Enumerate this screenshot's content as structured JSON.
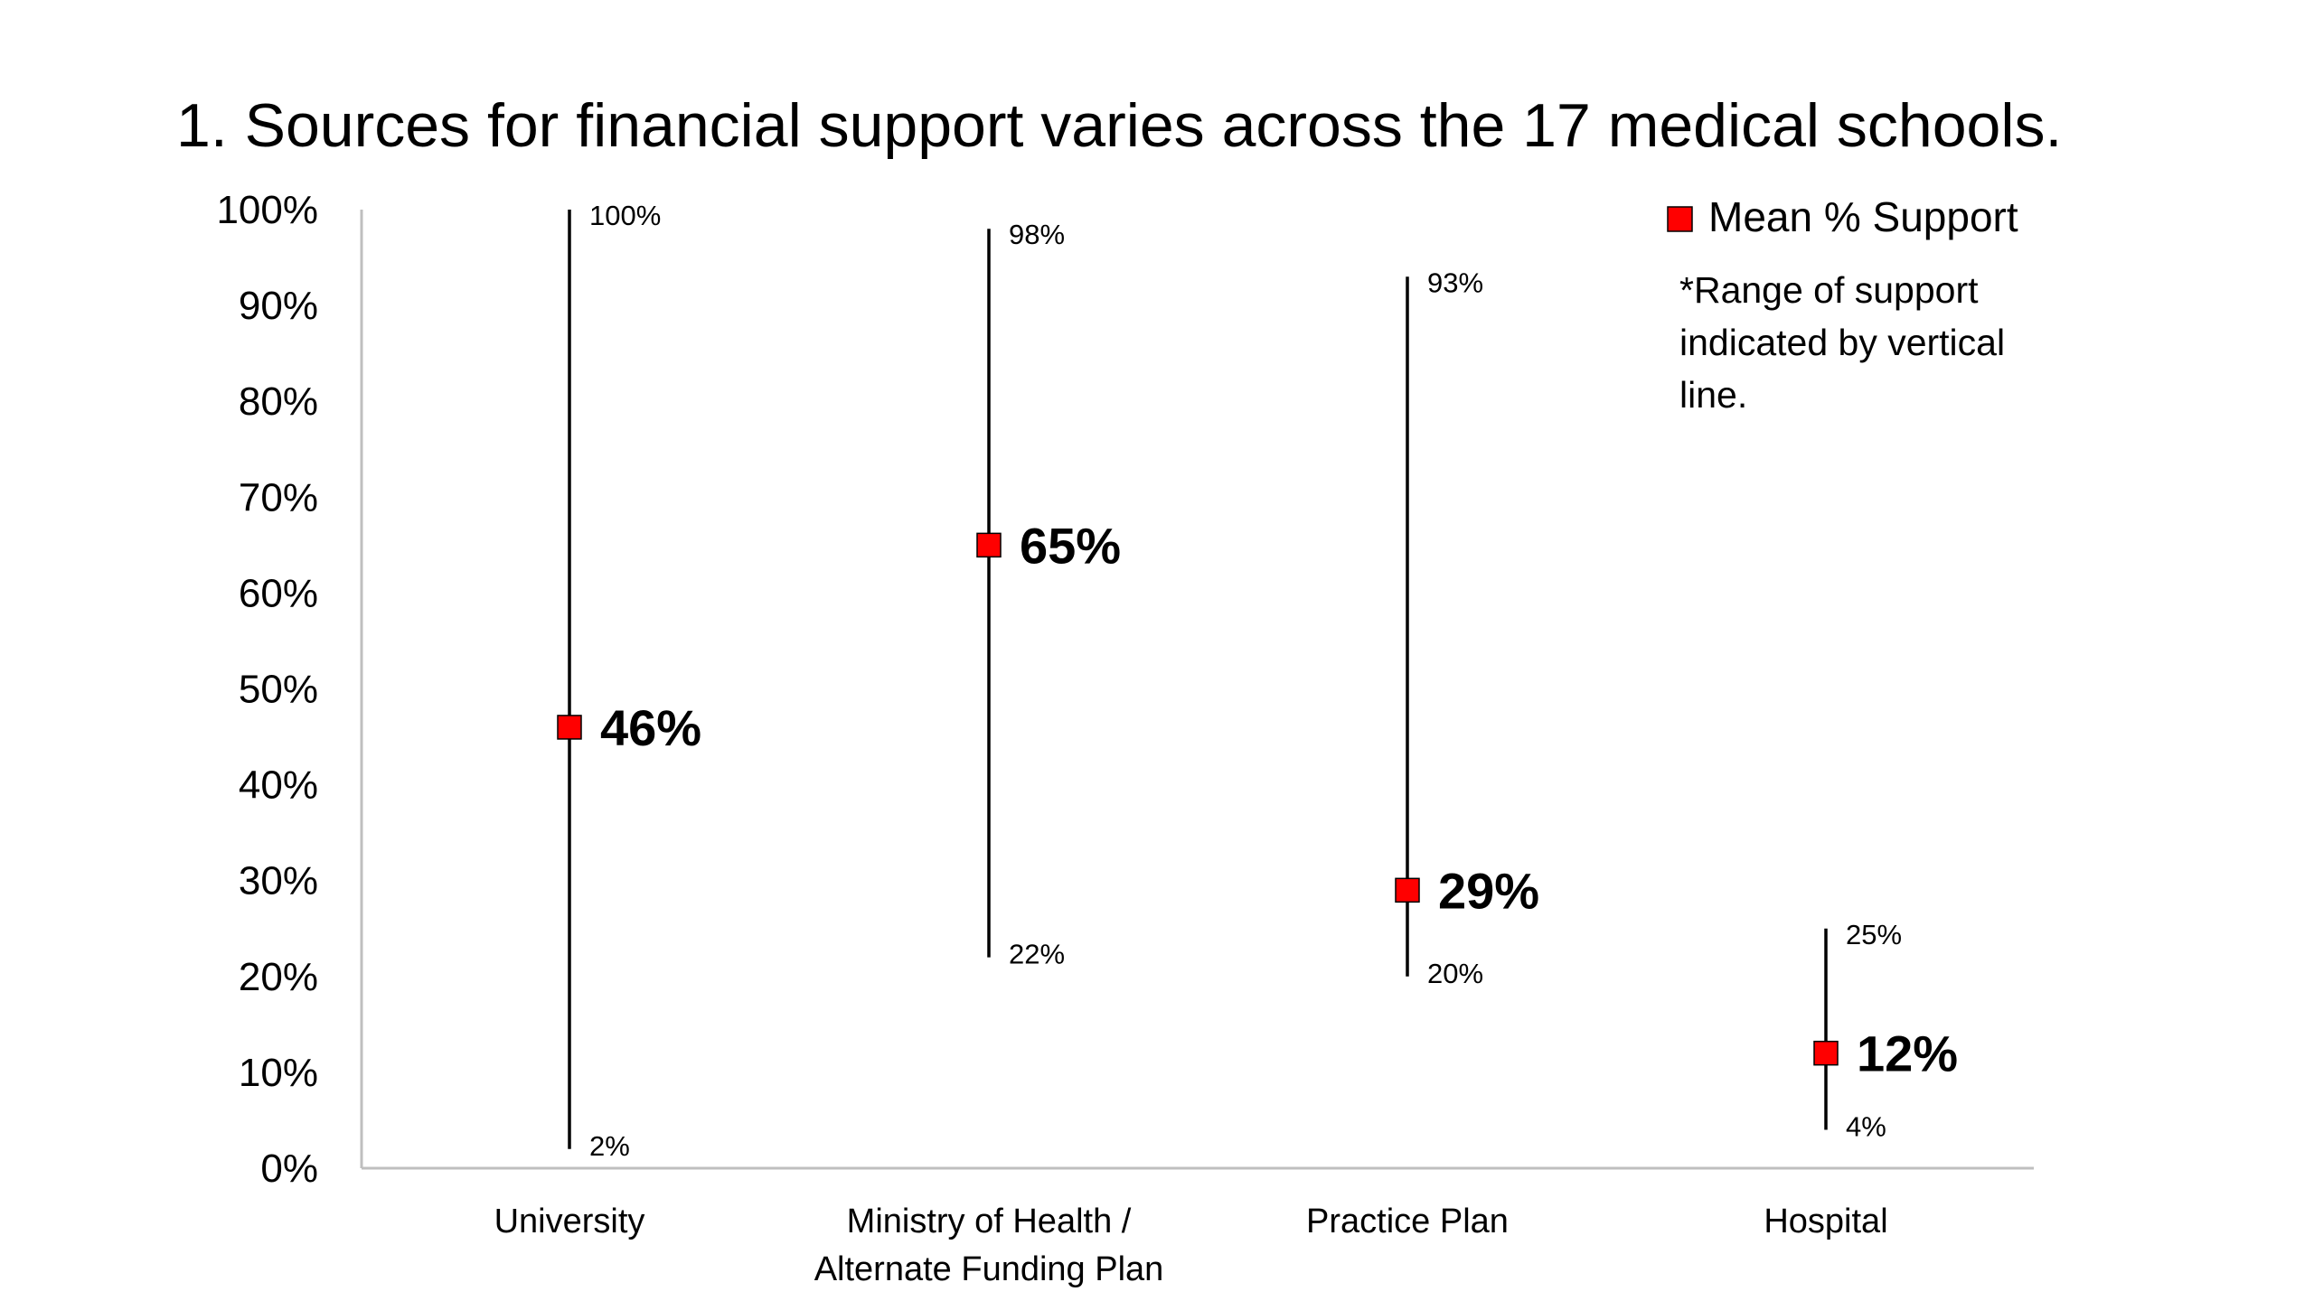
{
  "chart_data": {
    "type": "scatter",
    "title": "1. Sources for financial support varies across the 17 medical schools.",
    "xlabel": "",
    "ylabel": "",
    "ylim": [
      0,
      100
    ],
    "ytick_labels": [
      "0%",
      "10%",
      "20%",
      "30%",
      "40%",
      "50%",
      "60%",
      "70%",
      "80%",
      "90%",
      "100%"
    ],
    "categories": [
      {
        "lines": [
          "University"
        ]
      },
      {
        "lines": [
          "Ministry of Health /",
          "Alternate Funding Plan"
        ]
      },
      {
        "lines": [
          "Practice Plan"
        ]
      },
      {
        "lines": [
          "Hospital"
        ]
      }
    ],
    "series": [
      {
        "name": "Mean % Support",
        "color": "#ff0000",
        "values": [
          46,
          65,
          29,
          12
        ],
        "labels": [
          "46%",
          "65%",
          "29%",
          "12%"
        ]
      }
    ],
    "ranges": {
      "min": [
        2,
        22,
        20,
        4
      ],
      "max": [
        100,
        98,
        93,
        25
      ],
      "min_labels": [
        "2%",
        "22%",
        "20%",
        "4%"
      ],
      "max_labels": [
        "100%",
        "98%",
        "93%",
        "25%"
      ]
    },
    "legend": {
      "position": "top-right",
      "label": "Mean % Support",
      "note_lines": [
        "*Range of support",
        "indicated by vertical",
        "line."
      ]
    },
    "grid": false
  }
}
